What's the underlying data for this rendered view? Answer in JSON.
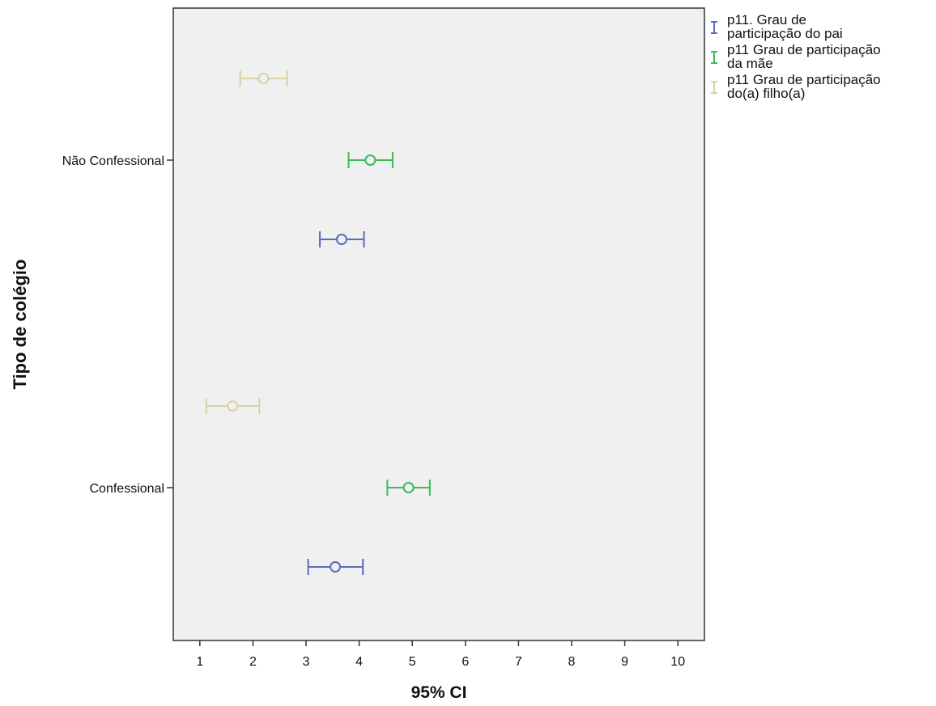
{
  "chart_data": {
    "type": "error-bar",
    "title": "",
    "xlabel": "95% CI",
    "ylabel": "Tipo de colégio",
    "xlim": [
      0.5,
      10.5
    ],
    "xticks": [
      1,
      2,
      3,
      4,
      5,
      6,
      7,
      8,
      9,
      10
    ],
    "categories": [
      "Não Confessional",
      "Confessional"
    ],
    "legend_position": "right",
    "grid": false,
    "plot_background": "#f0f0f0",
    "series": [
      {
        "name": "p11. Grau de\nparticipação do pai",
        "color": "#5b6db7",
        "points": [
          {
            "category": "Não Confessional",
            "mean": 3.67,
            "lower": 3.26,
            "upper": 4.09
          },
          {
            "category": "Confessional",
            "mean": 3.55,
            "lower": 3.04,
            "upper": 4.07
          }
        ]
      },
      {
        "name": "p11 Grau de participação\nda mãe",
        "color": "#3dbb5c",
        "points": [
          {
            "category": "Não Confessional",
            "mean": 4.21,
            "lower": 3.8,
            "upper": 4.63
          },
          {
            "category": "Confessional",
            "mean": 4.93,
            "lower": 4.53,
            "upper": 5.33
          }
        ]
      },
      {
        "name": "p11 Grau de participação\ndo(a) filho(a)",
        "color": "#d8d2a4",
        "points": [
          {
            "category": "Não Confessional",
            "mean": 2.2,
            "lower": 1.76,
            "upper": 2.64
          },
          {
            "category": "Confessional",
            "mean": 1.62,
            "lower": 1.12,
            "upper": 2.12
          }
        ]
      }
    ]
  }
}
